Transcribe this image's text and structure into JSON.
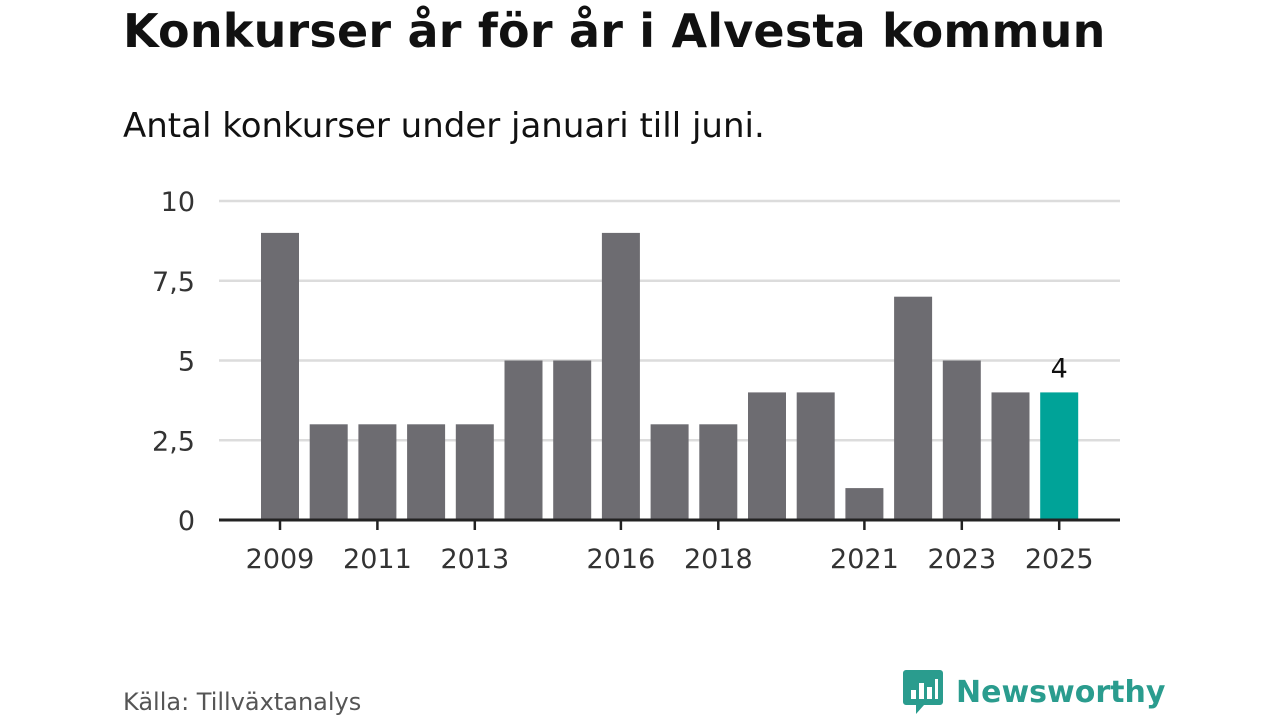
{
  "title": "Konkurser år för år i Alvesta kommun",
  "subtitle": "Antal konkurser under januari till juni.",
  "source": "Källa: Tillväxtanalys",
  "brand": {
    "name": "Newsworthy",
    "logo_icon": "newsworthy-chart-bubble-icon"
  },
  "colors": {
    "bar": "#6d6c71",
    "highlight": "#00a398",
    "grid": "#dcdcdc",
    "axis": "#222222",
    "brand": "#2a9c8e"
  },
  "chart_data": {
    "type": "bar",
    "categories": [
      "2009",
      "2010",
      "2011",
      "2012",
      "2013",
      "2014",
      "2015",
      "2016",
      "2017",
      "2018",
      "2019",
      "2020",
      "2021",
      "2022",
      "2023",
      "2024",
      "2025"
    ],
    "values": [
      9,
      3,
      3,
      3,
      3,
      5,
      5,
      9,
      3,
      3,
      4,
      4,
      1,
      7,
      5,
      4,
      4
    ],
    "x_tick_labels": [
      "2009",
      "2011",
      "2013",
      "2016",
      "2018",
      "2021",
      "2023",
      "2025"
    ],
    "y_ticks": [
      0,
      2.5,
      5,
      7.5,
      10
    ],
    "y_tick_labels": [
      "0",
      "2,5",
      "5",
      "7,5",
      "10"
    ],
    "ylim": [
      0,
      10
    ],
    "highlight_category": "2025",
    "annotations": [
      {
        "category": "2025",
        "text": "4"
      }
    ],
    "xlabel": "",
    "ylabel": "",
    "grid": true,
    "legend": "none"
  }
}
